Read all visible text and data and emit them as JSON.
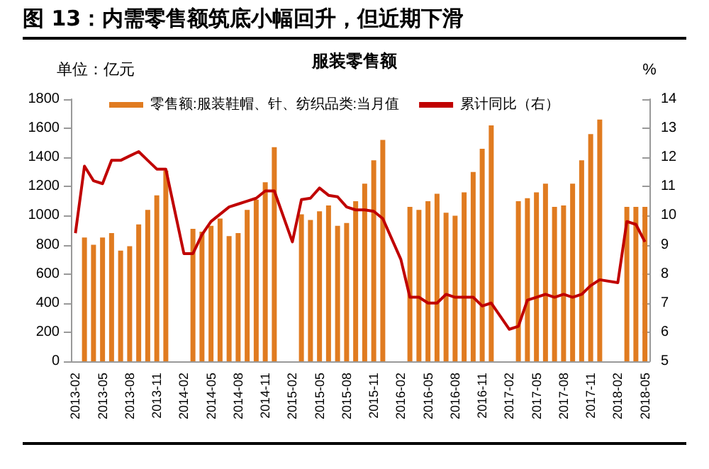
{
  "chart_data": {
    "type": "bar",
    "title": "图 13：内需零售额筑底小幅回升，但近期下滑",
    "subtitle": "服装零售额",
    "ylabel": "单位：亿元",
    "y2label": "%",
    "categories": [
      "2013-02",
      null,
      null,
      "2013-05",
      null,
      null,
      "2013-08",
      null,
      null,
      "2013-11",
      null,
      null,
      "2014-02",
      null,
      null,
      "2014-05",
      null,
      null,
      "2014-08",
      null,
      null,
      "2014-11",
      null,
      null,
      "2015-02",
      null,
      null,
      "2015-05",
      null,
      null,
      "2015-08",
      null,
      null,
      "2015-11",
      null,
      null,
      "2016-02",
      null,
      null,
      "2016-05",
      null,
      null,
      "2016-08",
      null,
      null,
      "2016-11",
      null,
      null,
      "2017-02",
      null,
      null,
      "2017-05",
      null,
      null,
      "2017-08",
      null,
      null,
      "2017-11",
      null,
      null,
      "2018-02",
      null,
      null,
      "2018-05"
    ],
    "series": [
      {
        "name": "零售额:服装鞋帽、针、纺织品类:当月值",
        "color": "#e07b20",
        "values": [
          null,
          850,
          800,
          850,
          880,
          760,
          790,
          940,
          1040,
          1140,
          1310,
          null,
          null,
          910,
          890,
          930,
          980,
          860,
          880,
          1040,
          1110,
          1230,
          1470,
          null,
          null,
          1010,
          970,
          1030,
          1070,
          930,
          950,
          1100,
          1220,
          1380,
          1520,
          null,
          null,
          1060,
          1040,
          1100,
          1150,
          1020,
          1000,
          1160,
          1300,
          1460,
          1620,
          null,
          null,
          1100,
          1120,
          1160,
          1220,
          1060,
          1070,
          1220,
          1380,
          1560,
          1660,
          null,
          null,
          1060,
          1060,
          1060
        ]
      },
      {
        "name": "累计同比（右）",
        "type": "line",
        "axis": "y2",
        "color": "#c00000",
        "values": [
          9.4,
          11.7,
          11.2,
          11.1,
          11.9,
          11.9,
          12.05,
          12.2,
          11.9,
          11.6,
          11.6,
          null,
          8.7,
          8.7,
          9.35,
          9.8,
          10.05,
          10.3,
          10.4,
          10.5,
          10.6,
          10.85,
          10.85,
          null,
          9.1,
          10.55,
          10.6,
          10.95,
          10.7,
          10.65,
          10.3,
          10.2,
          10.2,
          10.15,
          9.9,
          null,
          8.5,
          7.2,
          7.2,
          7.0,
          7.0,
          7.3,
          7.2,
          7.2,
          7.2,
          6.9,
          7.0,
          null,
          6.1,
          6.2,
          7.1,
          7.2,
          7.3,
          7.2,
          7.3,
          7.2,
          7.3,
          7.6,
          7.8,
          null,
          7.7,
          9.8,
          9.7,
          9.1
        ]
      }
    ],
    "ylim": [
      0,
      1800
    ],
    "yticks": [
      0,
      200,
      400,
      600,
      800,
      1000,
      1200,
      1400,
      1600,
      1800
    ],
    "y2lim": [
      5,
      14
    ],
    "y2ticks": [
      5,
      6,
      7,
      8,
      9,
      10,
      11,
      12,
      13,
      14
    ],
    "grid": false,
    "legend": "top",
    "marker": "none",
    "line_style": "solid"
  }
}
